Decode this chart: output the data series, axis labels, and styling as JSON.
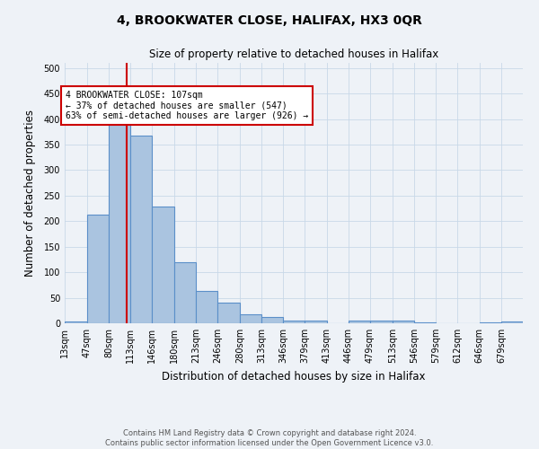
{
  "title": "4, BROOKWATER CLOSE, HALIFAX, HX3 0QR",
  "subtitle": "Size of property relative to detached houses in Halifax",
  "xlabel": "Distribution of detached houses by size in Halifax",
  "ylabel": "Number of detached properties",
  "bar_labels": [
    "13sqm",
    "47sqm",
    "80sqm",
    "113sqm",
    "146sqm",
    "180sqm",
    "213sqm",
    "246sqm",
    "280sqm",
    "313sqm",
    "346sqm",
    "379sqm",
    "413sqm",
    "446sqm",
    "479sqm",
    "513sqm",
    "546sqm",
    "579sqm",
    "612sqm",
    "646sqm",
    "679sqm"
  ],
  "bar_values": [
    3,
    212,
    403,
    367,
    229,
    119,
    64,
    40,
    17,
    13,
    6,
    6,
    0,
    5,
    5,
    6,
    1,
    0,
    0,
    1,
    3
  ],
  "bar_color": "#aac4e0",
  "bar_edge_color": "#5b8fc9",
  "property_line_x": 107,
  "bin_edges": [
    13,
    47,
    80,
    113,
    146,
    180,
    213,
    246,
    280,
    313,
    346,
    379,
    413,
    446,
    479,
    513,
    546,
    579,
    612,
    646,
    679,
    712
  ],
  "annotation_text": "4 BROOKWATER CLOSE: 107sqm\n← 37% of detached houses are smaller (547)\n63% of semi-detached houses are larger (926) →",
  "annotation_box_color": "#ffffff",
  "annotation_box_edge_color": "#cc0000",
  "red_line_color": "#cc0000",
  "ylim": [
    0,
    510
  ],
  "yticks": [
    0,
    50,
    100,
    150,
    200,
    250,
    300,
    350,
    400,
    450,
    500
  ],
  "grid_color": "#c8d8e8",
  "background_color": "#eef2f7",
  "footer": "Contains HM Land Registry data © Crown copyright and database right 2024.\nContains public sector information licensed under the Open Government Licence v3.0."
}
